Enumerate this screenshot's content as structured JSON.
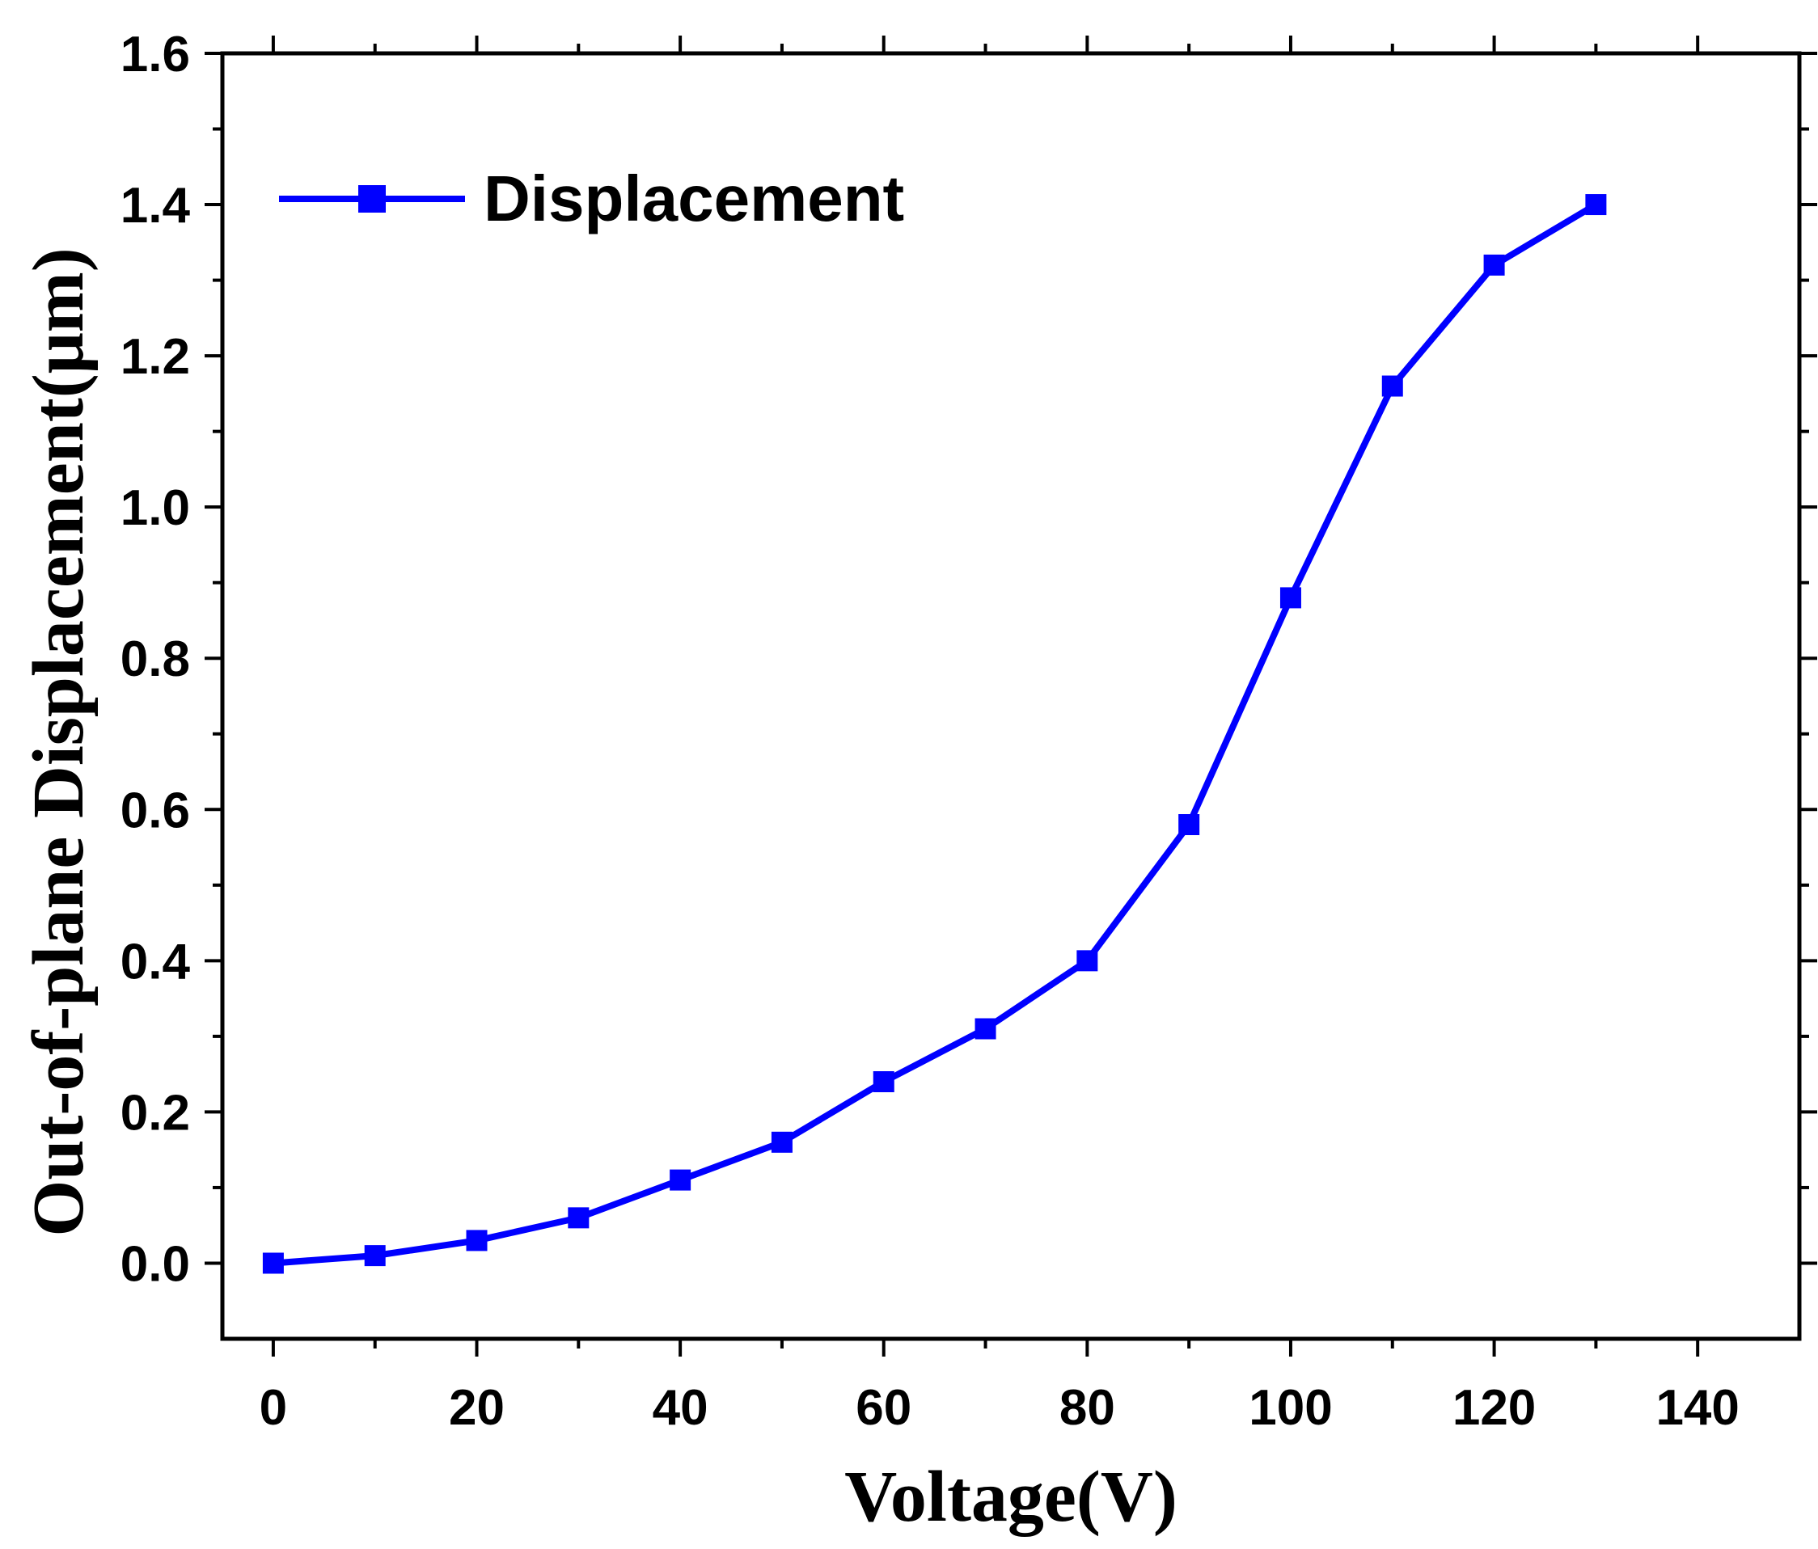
{
  "chart_data": {
    "type": "line",
    "title": "",
    "xlabel": "Voltage(V)",
    "ylabel": "Out-of-plane Displacement(μm)",
    "xlim": [
      -5,
      150
    ],
    "ylim": [
      -0.1,
      1.6
    ],
    "x_ticks": [
      0,
      20,
      40,
      60,
      80,
      100,
      120,
      140
    ],
    "x_tick_labels": [
      "0",
      "20",
      "40",
      "60",
      "80",
      "100",
      "120",
      "140"
    ],
    "y_ticks": [
      0.0,
      0.2,
      0.4,
      0.6,
      0.8,
      1.0,
      1.2,
      1.4,
      1.6
    ],
    "y_tick_labels": [
      "0.0",
      "0.2",
      "0.4",
      "0.6",
      "0.8",
      "1.0",
      "1.2",
      "1.4",
      "1.6"
    ],
    "grid": false,
    "legend_position": "top-left",
    "series": [
      {
        "name": "Displacement",
        "color": "#0000ff",
        "marker": "square",
        "x": [
          0,
          10,
          20,
          30,
          40,
          50,
          60,
          70,
          80,
          90,
          100,
          110,
          120,
          130
        ],
        "values": [
          0.0,
          0.01,
          0.03,
          0.06,
          0.11,
          0.16,
          0.24,
          0.31,
          0.4,
          0.58,
          0.88,
          1.16,
          1.32,
          1.4
        ]
      }
    ]
  }
}
